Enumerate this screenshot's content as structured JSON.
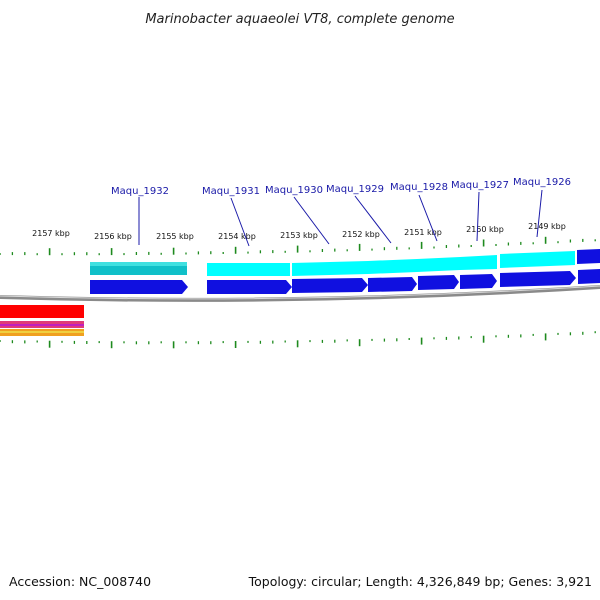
{
  "title": "Marinobacter aquaeolei VT8, complete genome",
  "footer": {
    "accession": "Accession: NC_008740",
    "summary": "Topology: circular; Length: 4,326,849 bp; Genes: 3,921"
  },
  "colors": {
    "tick": "#1e8a1e",
    "cds": "#1010e0",
    "gene_light": "#00ffff",
    "gene_teal": "#10c0c8",
    "backbone": "#8a8a8a",
    "label": "#1a1aa8",
    "rrna": "#ff0000",
    "trna": "#e03c78",
    "misc": "#f0a020"
  },
  "kbp_labels": [
    "2157 kbp",
    "2156 kbp",
    "2155 kbp",
    "2154 kbp",
    "2153 kbp",
    "2152 kbp",
    "2151 kbp",
    "2150 kbp",
    "2149 kbp"
  ],
  "genes": [
    {
      "label": "Maqu_1932"
    },
    {
      "label": "Maqu_1931"
    },
    {
      "label": "Maqu_1930"
    },
    {
      "label": "Maqu_1929"
    },
    {
      "label": "Maqu_1928"
    },
    {
      "label": "Maqu_1927"
    },
    {
      "label": "Maqu_1926"
    }
  ]
}
